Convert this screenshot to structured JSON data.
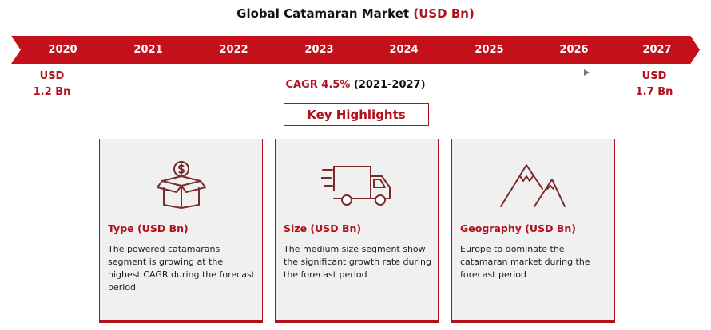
{
  "header": {
    "title_main": "Global Catamaran Market",
    "title_unit": "(USD Bn)"
  },
  "timeline": {
    "years": [
      "2020",
      "2021",
      "2022",
      "2023",
      "2024",
      "2025",
      "2026",
      "2027"
    ],
    "start_value": {
      "line1": "USD",
      "line2": "1.2 Bn"
    },
    "end_value": {
      "line1": "USD",
      "line2": "1.7 Bn"
    },
    "cagr_label": "CAGR 4.5%",
    "cagr_period": "(2021-2027)"
  },
  "key_highlights_label": "Key Highlights",
  "cards": [
    {
      "icon": "money-box-icon",
      "title": "Type (USD Bn)",
      "description": "The powered catamarans segment is growing at the highest CAGR during the forecast period"
    },
    {
      "icon": "truck-icon",
      "title": "Size (USD Bn)",
      "description": "The medium size segment show the significant growth rate during the forecast period"
    },
    {
      "icon": "mountain-icon",
      "title": "Geography (USD Bn)",
      "description": "Europe to dominate the catamaran market during the forecast period"
    }
  ],
  "colors": {
    "accent": "#c4101b",
    "accent_text": "#b2101a",
    "card_bg": "#f0f0f0",
    "icon_stroke": "#7a2a2a"
  }
}
